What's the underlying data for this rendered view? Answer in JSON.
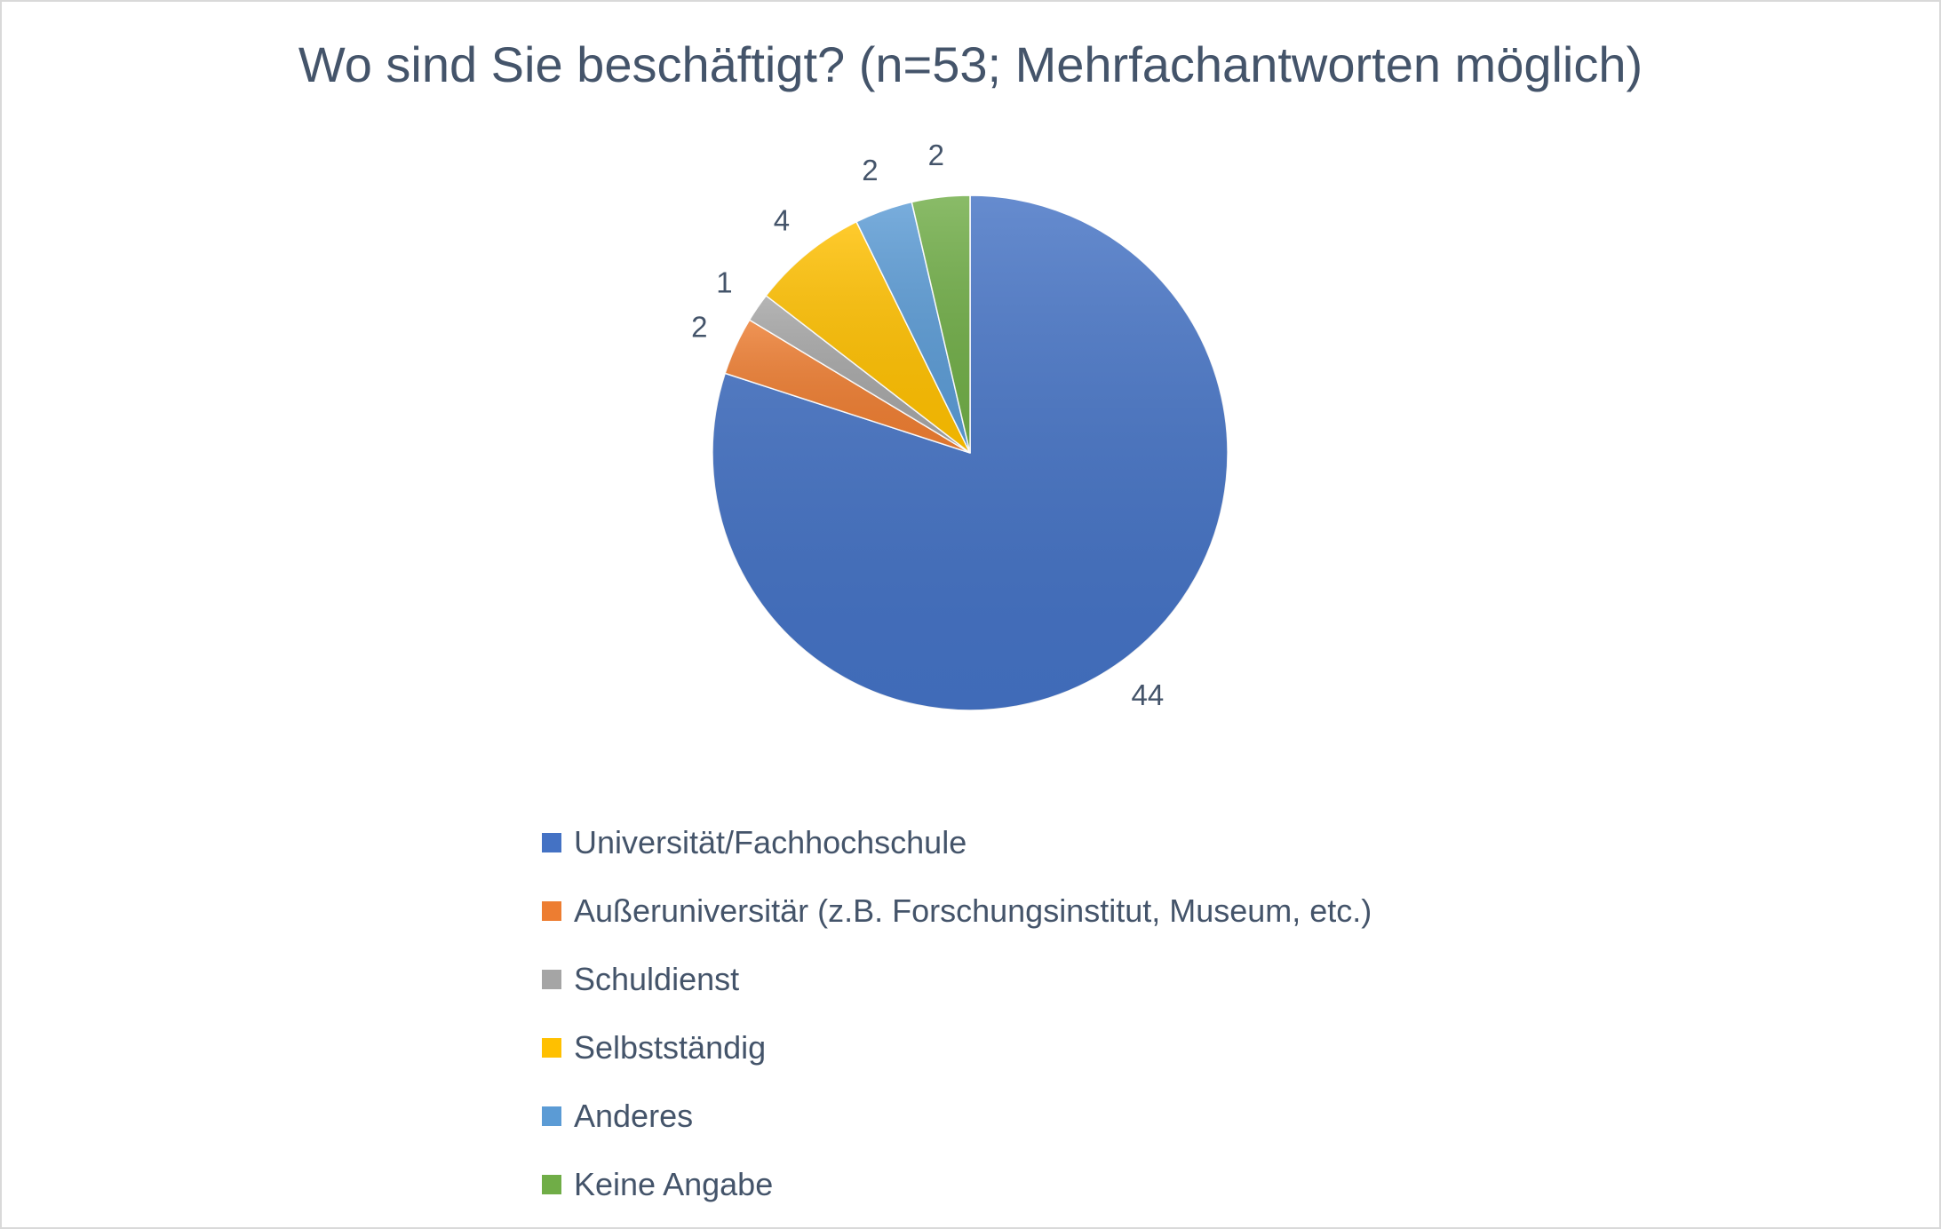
{
  "chart_data": {
    "type": "pie",
    "title": "Wo sind Sie beschäftigt? (n=53; Mehrfachantworten möglich)",
    "categories": [
      "Universität/Fachhochschule",
      "Außeruniversitär (z.B. Forschungsinstitut, Museum, etc.)",
      "Schuldienst",
      "Selbstständig",
      "Anderes",
      "Keine Angabe"
    ],
    "values": [
      44,
      2,
      1,
      4,
      2,
      2
    ],
    "data_labels": [
      "44",
      "2",
      "1",
      "4",
      "2",
      "2"
    ],
    "colors": [
      "#4472c4",
      "#ed7d31",
      "#a5a5a5",
      "#ffc000",
      "#5b9bd5",
      "#70ad47"
    ],
    "legend_position": "bottom"
  }
}
